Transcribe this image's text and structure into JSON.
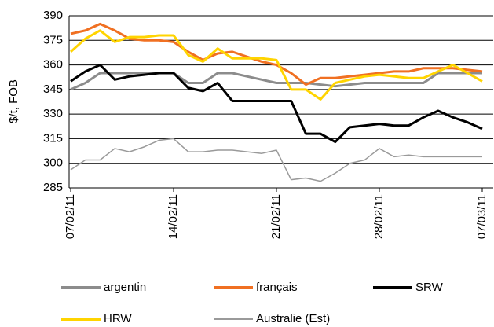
{
  "chart_data": {
    "type": "line",
    "y_label": "$/t, FOB",
    "categories": [
      "07/02/11",
      null,
      null,
      null,
      null,
      null,
      null,
      "14/02/11",
      null,
      null,
      null,
      null,
      null,
      null,
      "21/02/11",
      null,
      null,
      null,
      null,
      null,
      null,
      "28/02/11",
      null,
      null,
      null,
      null,
      null,
      null,
      "07/03/11"
    ],
    "series": [
      {
        "name": "argentin",
        "color": "#8c8c8c",
        "values": [
          345,
          349,
          355,
          355,
          355,
          355,
          355,
          355,
          349,
          349,
          355,
          355,
          353,
          351,
          349,
          349,
          349,
          348,
          347,
          348,
          349,
          349,
          349,
          349,
          349,
          355,
          355,
          355,
          355
        ]
      },
      {
        "name": "français",
        "color": "#f07022",
        "values": [
          379,
          381,
          385,
          381,
          376,
          375,
          375,
          374,
          368,
          363,
          367,
          368,
          365,
          362,
          360,
          355,
          348,
          352,
          352,
          353,
          354,
          355,
          356,
          356,
          358,
          358,
          358,
          357,
          356
        ]
      },
      {
        "name": "SRW",
        "color": "#000000",
        "values": [
          350,
          356,
          360,
          351,
          353,
          354,
          355,
          355,
          346,
          344,
          349,
          338,
          338,
          338,
          338,
          338,
          318,
          318,
          313,
          322,
          323,
          324,
          323,
          323,
          328,
          332,
          328,
          325,
          321
        ]
      },
      {
        "name": "HRW",
        "color": "#ffd400",
        "values": [
          368,
          376,
          381,
          374,
          377,
          377,
          378,
          378,
          366,
          362,
          370,
          364,
          364,
          364,
          363,
          345,
          345,
          339,
          349,
          351,
          353,
          354,
          353,
          352,
          352,
          356,
          360,
          355,
          350
        ]
      },
      {
        "name": "Australie (Est)",
        "color": "#9a9a9a",
        "values": [
          296,
          302,
          302,
          309,
          307,
          310,
          314,
          315,
          307,
          307,
          308,
          308,
          307,
          306,
          308,
          290,
          291,
          289,
          294,
          300,
          302,
          309,
          304,
          305,
          304,
          304,
          304,
          304,
          304
        ]
      }
    ],
    "ylim": [
      285,
      390
    ],
    "yticks": [
      285,
      300,
      315,
      330,
      345,
      360,
      375,
      390
    ],
    "grid": true
  }
}
